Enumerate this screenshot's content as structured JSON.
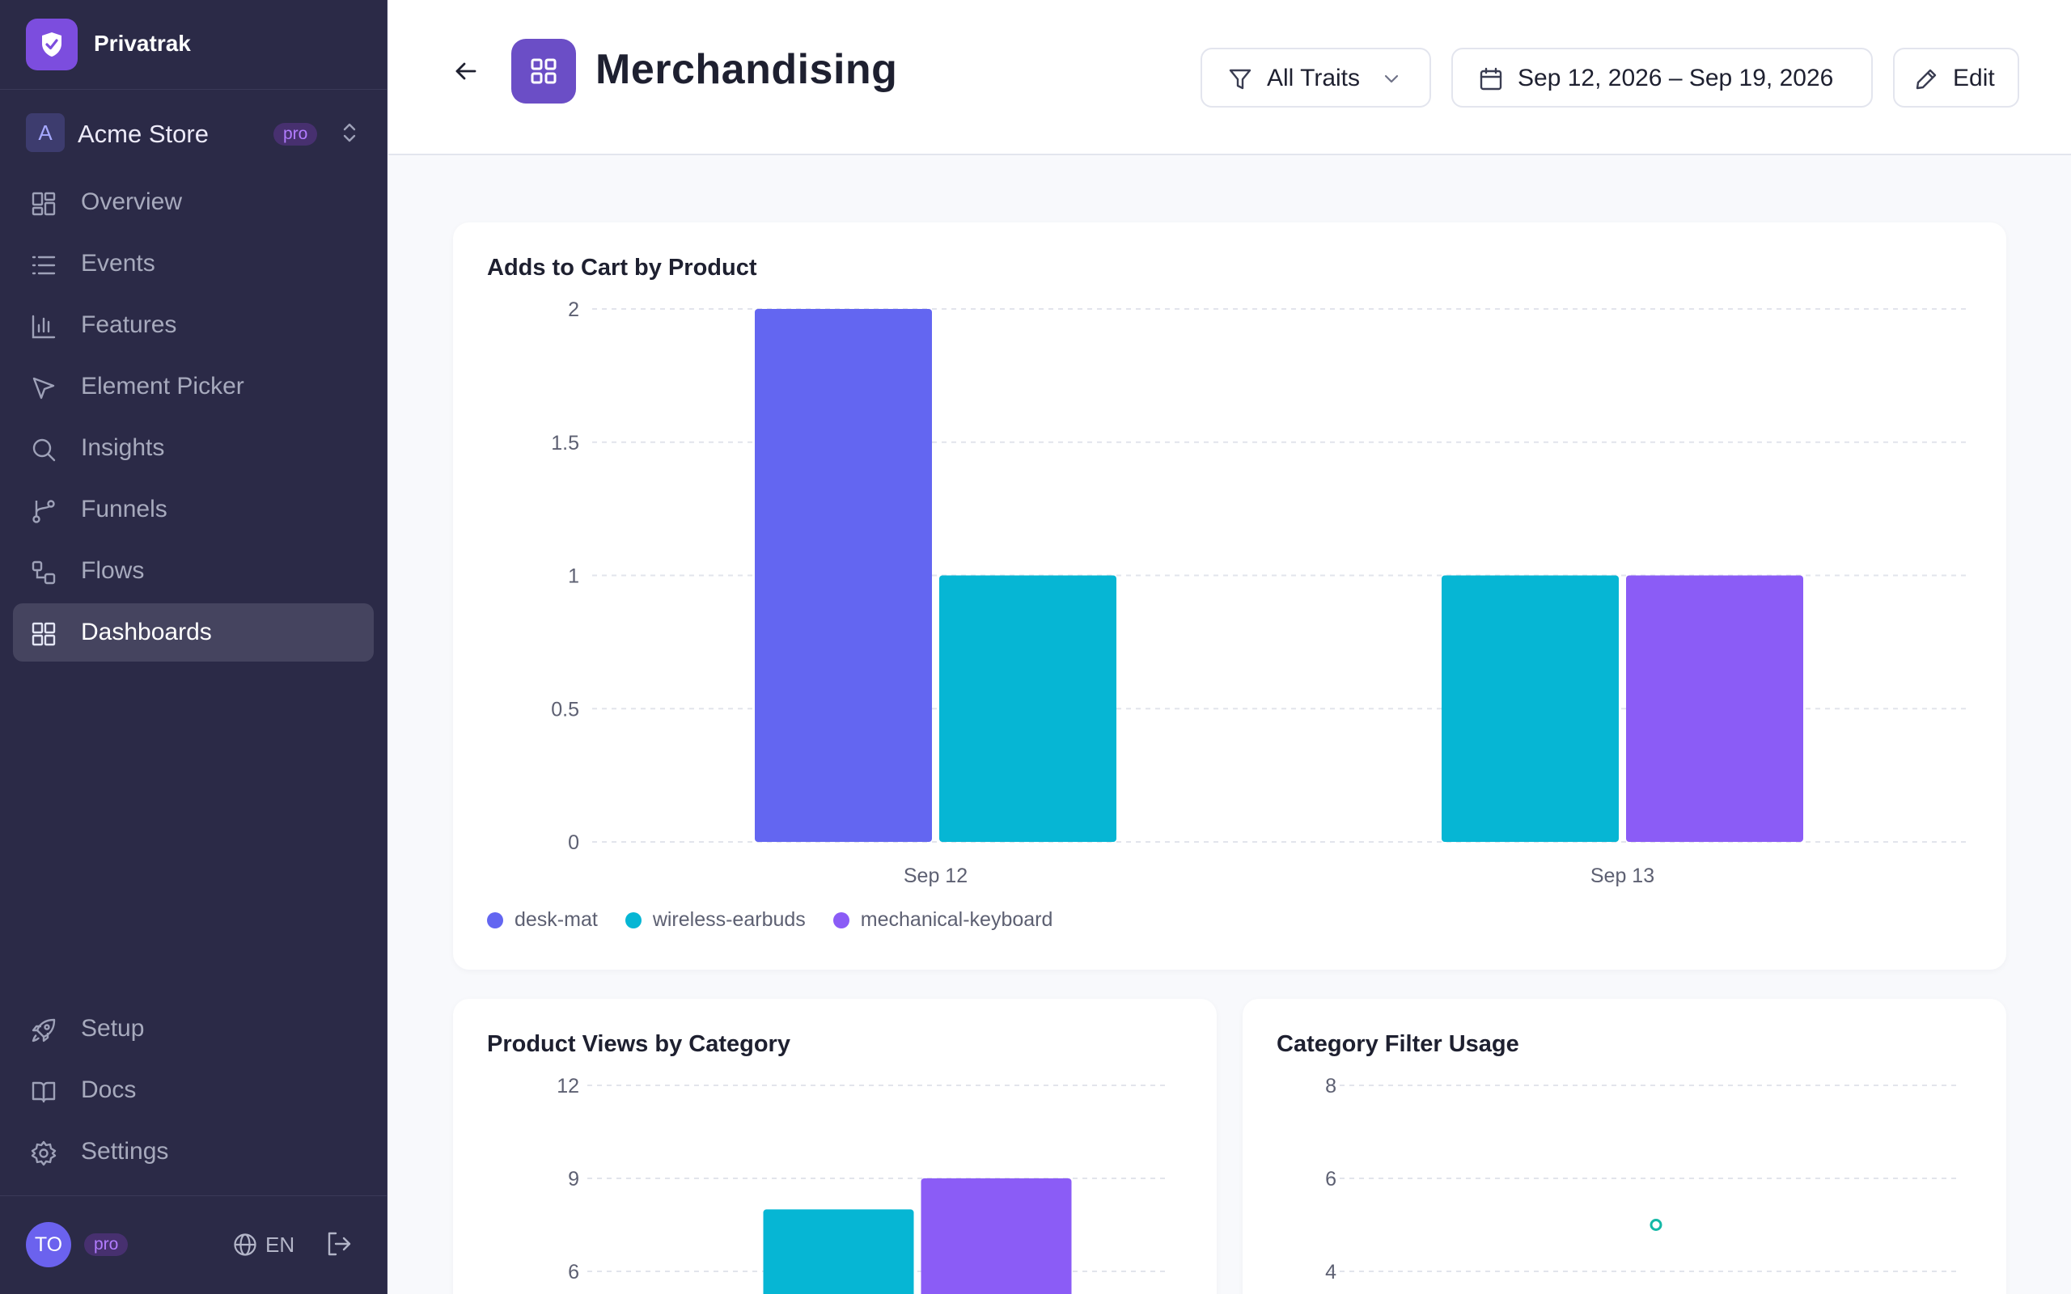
{
  "app": {
    "name": "Privatrak"
  },
  "workspace": {
    "initial": "A",
    "name": "Acme Store",
    "badge": "pro"
  },
  "nav": {
    "items": [
      {
        "label": "Overview",
        "icon": "grid-icon"
      },
      {
        "label": "Events",
        "icon": "list-icon"
      },
      {
        "label": "Features",
        "icon": "bar-chart-icon"
      },
      {
        "label": "Element Picker",
        "icon": "cursor-icon"
      },
      {
        "label": "Insights",
        "icon": "search-icon"
      },
      {
        "label": "Funnels",
        "icon": "branch-icon"
      },
      {
        "label": "Flows",
        "icon": "flow-icon"
      },
      {
        "label": "Dashboards",
        "icon": "dashboard-icon",
        "active": true
      }
    ],
    "bottom": [
      {
        "label": "Setup",
        "icon": "rocket-icon"
      },
      {
        "label": "Docs",
        "icon": "book-icon"
      },
      {
        "label": "Settings",
        "icon": "gear-icon"
      }
    ]
  },
  "user": {
    "initials": "TO",
    "badge": "pro",
    "language": "EN"
  },
  "header": {
    "title": "Merchandising",
    "traits_label": "All Traits",
    "date_range": "Sep 12, 2026 – Sep 19, 2026",
    "edit_label": "Edit"
  },
  "colors": {
    "desk-mat": "#6366f1",
    "wireless-earbuds": "#06b6d4",
    "mechanical-keyboard": "#8b5cf6",
    "accent": "#7c4dde",
    "sidebar_bg": "#2b2a47"
  },
  "chart_data": [
    {
      "type": "bar",
      "title": "Adds to Cart by Product",
      "categories": [
        "Sep 12",
        "Sep 13"
      ],
      "series": [
        {
          "name": "desk-mat",
          "values": [
            2,
            0
          ]
        },
        {
          "name": "wireless-earbuds",
          "values": [
            1,
            1
          ]
        },
        {
          "name": "mechanical-keyboard",
          "values": [
            0,
            1
          ]
        }
      ],
      "ylim": [
        0,
        2
      ],
      "yticks": [
        "0",
        "0.5",
        "1",
        "1.5",
        "2"
      ],
      "grid": true,
      "legend": "bottom-left"
    },
    {
      "type": "bar",
      "title": "Product Views by Category",
      "yticks_visible": [
        "12",
        "9",
        "6"
      ],
      "ylim_visible": [
        6,
        12
      ],
      "series": [
        {
          "name": "wireless-earbuds",
          "values": [
            8
          ]
        },
        {
          "name": "mechanical-keyboard",
          "values": [
            9
          ]
        }
      ],
      "grid": true
    },
    {
      "type": "scatter",
      "title": "Category Filter Usage",
      "yticks_visible": [
        "8",
        "6",
        "4"
      ],
      "ylim_visible": [
        4,
        8
      ],
      "points": [
        {
          "y": 5
        }
      ],
      "grid": true
    }
  ]
}
